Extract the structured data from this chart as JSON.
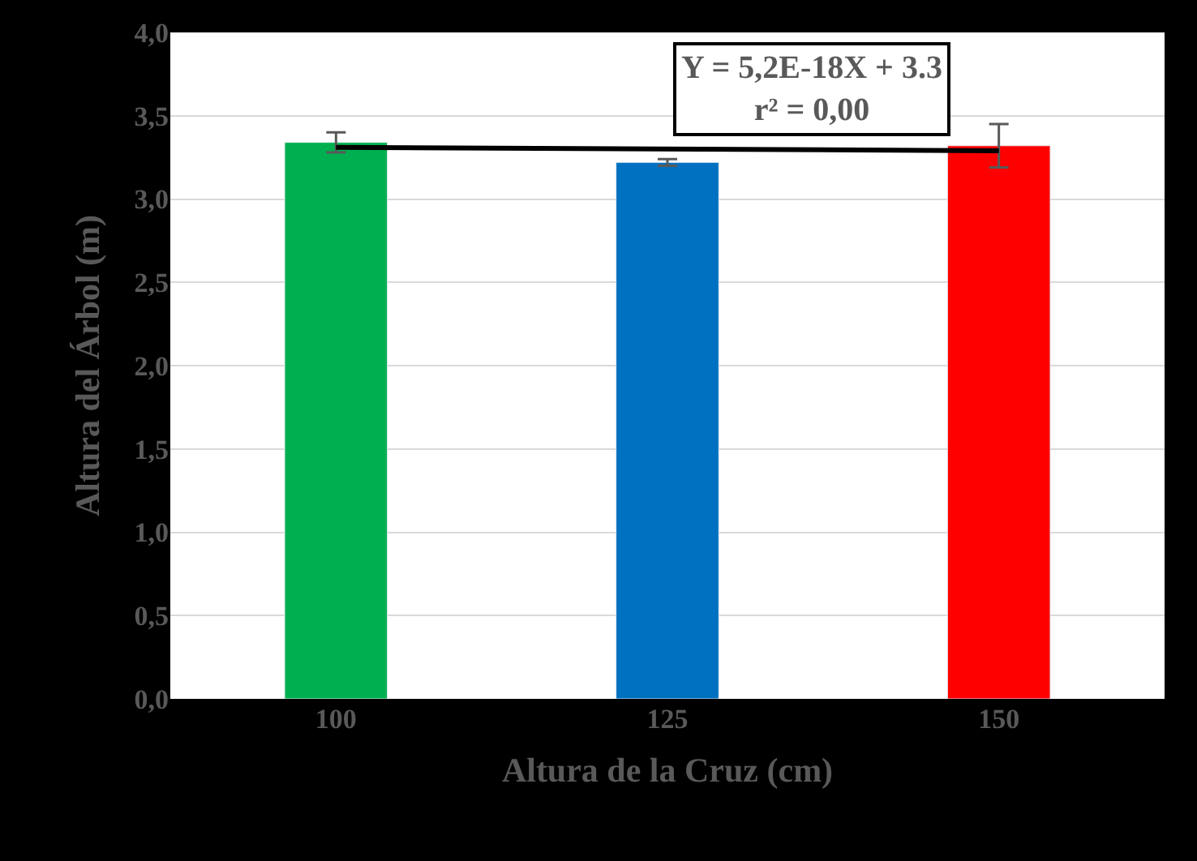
{
  "chart_data": {
    "type": "bar",
    "xlabel": "Altura de la Cruz (cm)",
    "ylabel": "Altura del Árbol (m)",
    "categories": [
      "100",
      "125",
      "150"
    ],
    "series": [
      {
        "colors": [
          "#00b050",
          "#0070c0",
          "#ff0000"
        ],
        "values": [
          3.34,
          3.22,
          3.32
        ],
        "errors": [
          0.06,
          0.02,
          0.13
        ]
      },
      {
        "type": "line",
        "color": "#000000",
        "x": [
          "100",
          "150"
        ],
        "values": [
          3.31,
          3.29
        ]
      }
    ],
    "annotations": [
      "Y = 5,2E-18X + 3.3\nr² = 0,00"
    ],
    "ylim": [
      0,
      4
    ],
    "yticks": [
      {
        "value": 0,
        "label": "0,0"
      },
      {
        "value": 0.5,
        "label": "0,5"
      },
      {
        "value": 1,
        "label": "1,0"
      },
      {
        "value": 1.5,
        "label": "1,5"
      },
      {
        "value": 2,
        "label": "2,0"
      },
      {
        "value": 2.5,
        "label": "2,5"
      },
      {
        "value": 3,
        "label": "3,0"
      },
      {
        "value": 3.5,
        "label": "3,5"
      },
      {
        "value": 4,
        "label": "4,0"
      }
    ],
    "grid": "y",
    "legend": false
  }
}
